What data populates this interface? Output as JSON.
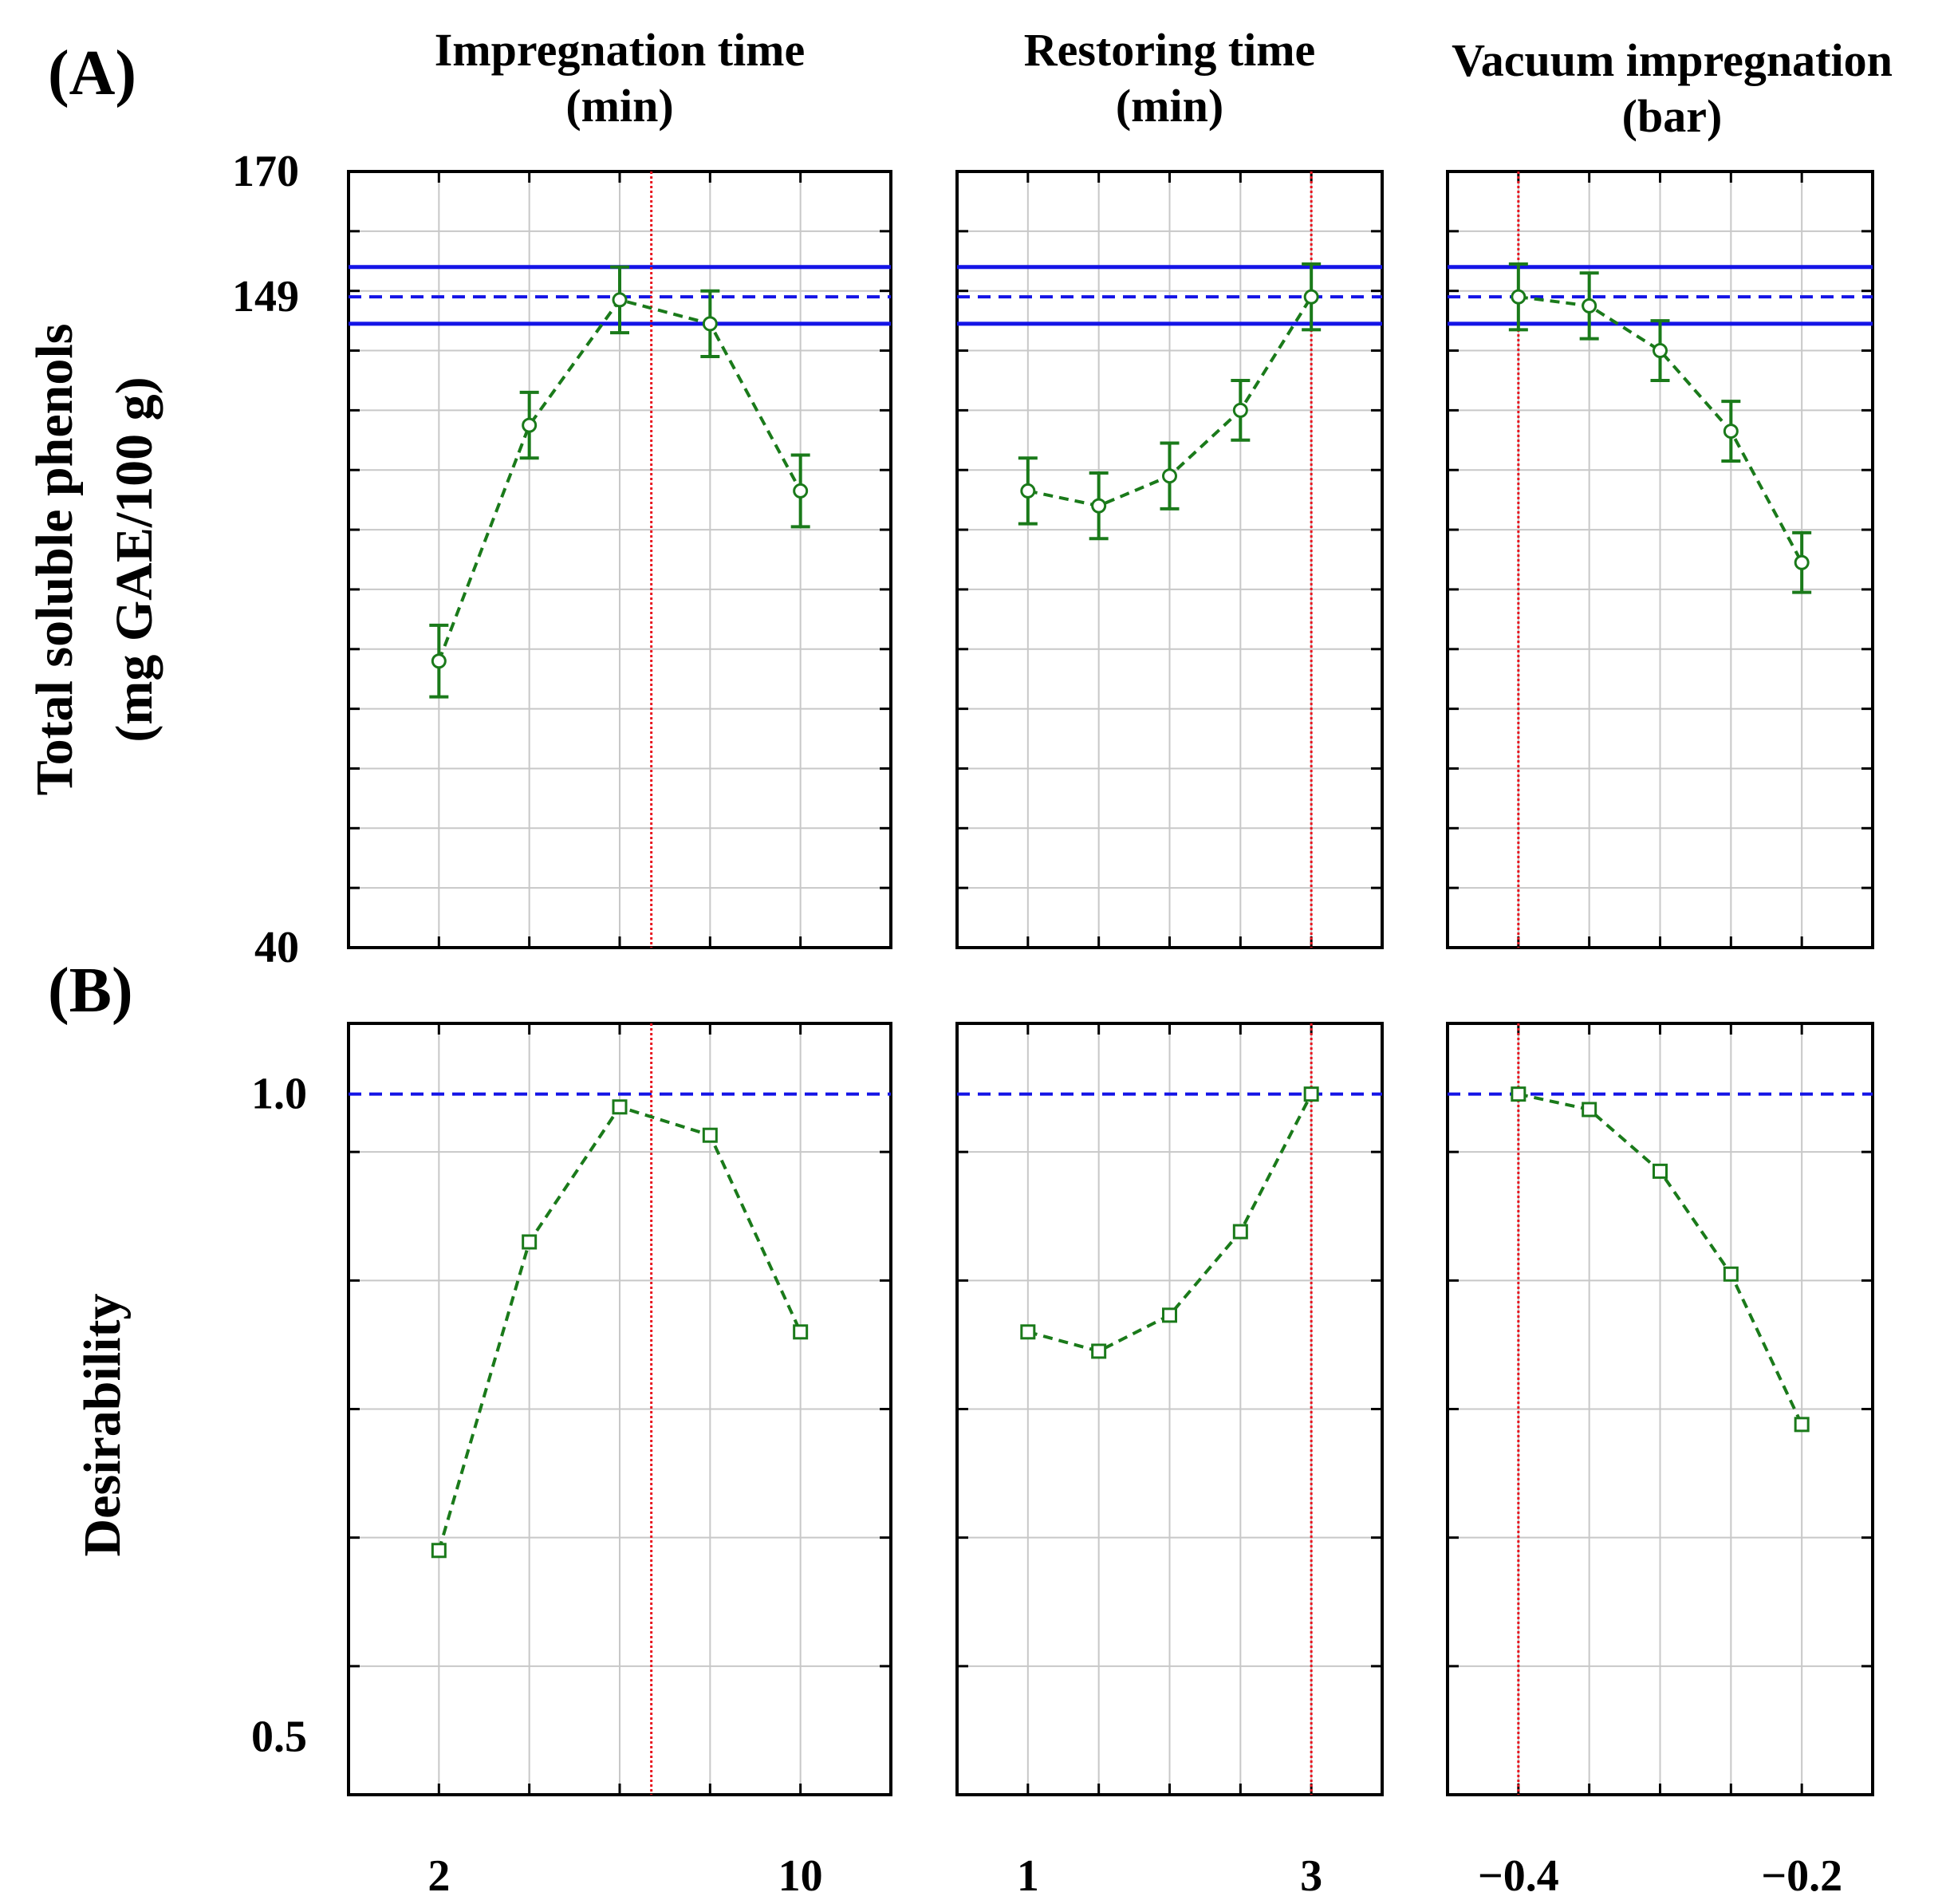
{
  "panel_labels": {
    "top": "(A)",
    "bottom": "(B)"
  },
  "colors": {
    "grid": "#c8c8c8",
    "frame": "#000000",
    "prediction": "#1a7a1a",
    "optimum": "#e8141e",
    "desirability_ref": "#1414e6"
  },
  "chart_data": [
    {
      "type": "line",
      "panel": "A",
      "ylabel": [
        "Total soluble phenols",
        "(mg GAE/100 g)"
      ],
      "ylim": [
        40,
        170
      ],
      "ytick_labels": [
        "170",
        "149",
        "40"
      ],
      "ytick_values": [
        170,
        149,
        40
      ],
      "reference_lines": {
        "predicted": 149,
        "ci_upper": 154,
        "ci_lower": 144.5
      },
      "factors": [
        {
          "title": [
            "Impregnation time",
            "(min)"
          ],
          "x": [
            2,
            4,
            6,
            8,
            10
          ],
          "xlim": [
            0,
            12
          ],
          "xtick_labels": [
            "2",
            "10"
          ],
          "xtick_values": [
            2,
            10
          ],
          "optimum": 6.7,
          "values": [
            88,
            127.5,
            148.5,
            144.5,
            116.5
          ],
          "errors": [
            6,
            5.5,
            5.5,
            5.5,
            6
          ]
        },
        {
          "title": [
            "Restoring time",
            "(min)"
          ],
          "x": [
            1,
            1.5,
            2,
            2.5,
            3
          ],
          "xlim": [
            0.5,
            3.5
          ],
          "xtick_labels": [
            "1",
            "3"
          ],
          "xtick_values": [
            1,
            3
          ],
          "optimum": 3,
          "values": [
            116.5,
            114,
            119,
            130,
            149
          ],
          "errors": [
            5.5,
            5.5,
            5.5,
            5,
            5.5
          ]
        },
        {
          "title": [
            "Vacuum impregnation",
            "(bar)"
          ],
          "x": [
            -0.4,
            -0.35,
            -0.3,
            -0.25,
            -0.2
          ],
          "xlim": [
            -0.45,
            -0.15
          ],
          "xtick_labels": [
            "−0.4",
            "−0.2"
          ],
          "xtick_values": [
            -0.4,
            -0.2
          ],
          "optimum": -0.4,
          "values": [
            149,
            147.5,
            140,
            126.5,
            104.5
          ],
          "errors": [
            5.5,
            5.5,
            5,
            5,
            5
          ]
        }
      ]
    },
    {
      "type": "line",
      "panel": "B",
      "ylabel": [
        "Desirability"
      ],
      "ylim": [
        0.455,
        1.055
      ],
      "ytick_labels": [
        "1.0",
        "0.5"
      ],
      "ytick_values": [
        1.0,
        0.5
      ],
      "reference_lines": {
        "max_desirability": 1.0
      },
      "factors": [
        {
          "x": [
            2,
            4,
            6,
            8,
            10
          ],
          "values": [
            0.645,
            0.885,
            0.99,
            0.968,
            0.815
          ]
        },
        {
          "x": [
            1,
            1.5,
            2,
            2.5,
            3
          ],
          "values": [
            0.815,
            0.8,
            0.828,
            0.893,
            1.0
          ]
        },
        {
          "x": [
            -0.4,
            -0.35,
            -0.3,
            -0.25,
            -0.2
          ],
          "values": [
            1.0,
            0.988,
            0.94,
            0.86,
            0.743
          ]
        }
      ]
    }
  ]
}
